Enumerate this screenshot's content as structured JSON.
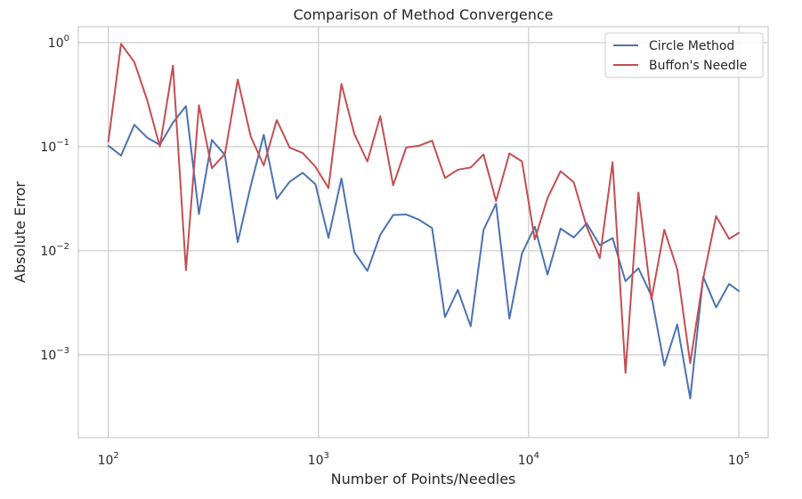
{
  "chart_data": {
    "type": "line",
    "title": "Comparison of Method Convergence",
    "xlabel": "Number of Points/Needles",
    "ylabel": "Absolute Error",
    "xscale": "log",
    "yscale": "log",
    "xlim": [
      72,
      138000
    ],
    "ylim": [
      0.00016,
      1.42
    ],
    "x_ticks": [
      {
        "value": 100,
        "base": "10",
        "exp": "2"
      },
      {
        "value": 1000,
        "base": "10",
        "exp": "3"
      },
      {
        "value": 10000,
        "base": "10",
        "exp": "4"
      },
      {
        "value": 100000,
        "base": "10",
        "exp": "5"
      }
    ],
    "y_ticks": [
      {
        "value": 1,
        "base": "10",
        "exp": "0"
      },
      {
        "value": 0.1,
        "base": "10",
        "exp": "−1"
      },
      {
        "value": 0.01,
        "base": "10",
        "exp": "−2"
      },
      {
        "value": 0.001,
        "base": "10",
        "exp": "−3"
      }
    ],
    "grid": true,
    "legend_position": "top-right",
    "x": [
      100,
      115,
      133,
      153,
      176,
      203,
      234,
      270,
      311,
      359,
      413,
      476,
      549,
      633,
      729,
      840,
      968,
      1116,
      1286,
      1482,
      1708,
      1968,
      2268,
      2613,
      3012,
      3470,
      4000,
      4600,
      5300,
      6100,
      7000,
      8100,
      9300,
      10700,
      12300,
      14200,
      16400,
      18900,
      21800,
      25100,
      28900,
      33300,
      38400,
      44200,
      51000,
      58700,
      67700,
      78000,
      89900,
      100000
    ],
    "series": [
      {
        "name": "Circle Method",
        "color": "#4c72b0",
        "values": [
          0.102,
          0.082,
          0.162,
          0.122,
          0.104,
          0.17,
          0.245,
          0.0225,
          0.116,
          0.083,
          0.0121,
          0.042,
          0.13,
          0.0315,
          0.046,
          0.056,
          0.0435,
          0.0133,
          0.0495,
          0.0097,
          0.0064,
          0.0142,
          0.022,
          0.0223,
          0.0198,
          0.0165,
          0.0023,
          0.0042,
          0.00188,
          0.0158,
          0.0283,
          0.00222,
          0.0094,
          0.017,
          0.0059,
          0.0163,
          0.0134,
          0.0183,
          0.0113,
          0.0132,
          0.0051,
          0.0068,
          0.0037,
          0.00079,
          0.00195,
          0.00038,
          0.0056,
          0.00285,
          0.0048,
          0.0041
        ]
      },
      {
        "name": "Buffon's Needle",
        "color": "#c44e52",
        "values": [
          0.112,
          0.97,
          0.65,
          0.28,
          0.1,
          0.6,
          0.0065,
          0.25,
          0.062,
          0.085,
          0.44,
          0.125,
          0.066,
          0.18,
          0.098,
          0.087,
          0.064,
          0.04,
          0.4,
          0.132,
          0.072,
          0.196,
          0.0425,
          0.098,
          0.102,
          0.114,
          0.05,
          0.06,
          0.063,
          0.084,
          0.03,
          0.086,
          0.072,
          0.0128,
          0.032,
          0.058,
          0.0455,
          0.017,
          0.0085,
          0.071,
          0.00067,
          0.0362,
          0.0034,
          0.0159,
          0.0066,
          0.00083,
          0.0054,
          0.0215,
          0.013,
          0.0148
        ]
      }
    ]
  }
}
